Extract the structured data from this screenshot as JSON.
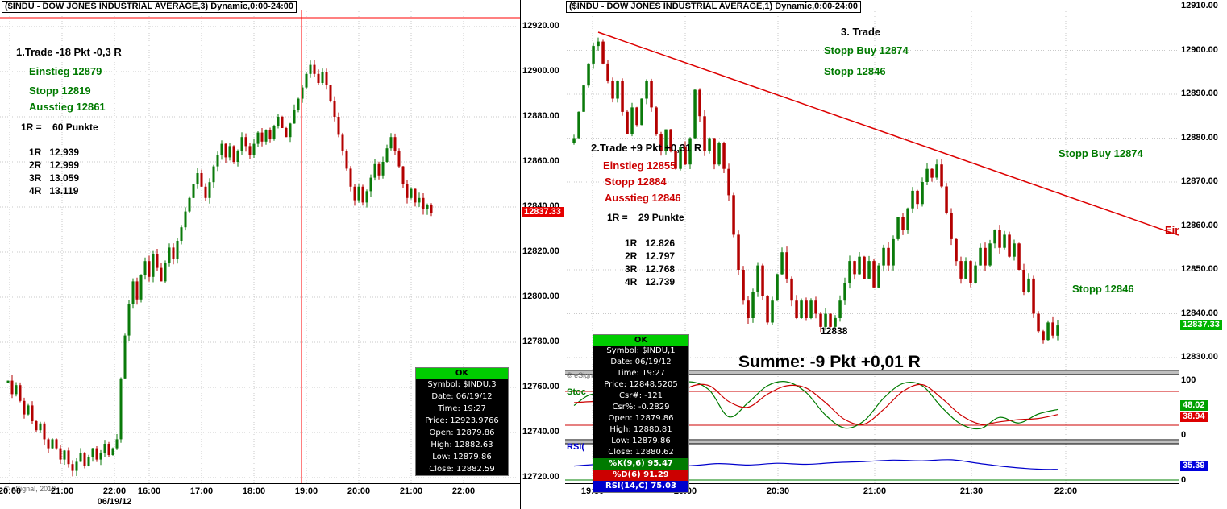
{
  "left_panel": {
    "title": "($INDU - DOW JONES INDUSTRIAL AVERAGE,3) Dynamic,0:00-24:00",
    "annotations": {
      "trade_title": "1.Trade -18 Pkt -0,3 R",
      "einstieg": "Einstieg 12879",
      "stopp": "Stopp 12819",
      "ausstieg": "Ausstieg 12861",
      "r_def": "1R =    60 Punkte",
      "r_rows": [
        "1R   12.939",
        "2R   12.999",
        "3R   13.059",
        "4R   13.119"
      ]
    },
    "tooltip": {
      "ok": "OK",
      "rows": [
        "Symbol: $INDU,3",
        "Date: 06/19/12",
        "Time: 19:27",
        "Price: 12923.9766",
        "Open: 12879.86",
        "High: 12882.63",
        "Low: 12879.86",
        "Close: 12882.59"
      ]
    },
    "x_labels": [
      "20:00",
      "21:00",
      "22:00",
      "16:00",
      "17:00",
      "18:00",
      "19:00",
      "20:00",
      "21:00",
      "22:00"
    ],
    "date_label": "06/19/12",
    "copyright": "© eSignal, 2010",
    "last_price_tag": "12837.33"
  },
  "right_panel": {
    "title": "($INDU - DOW JONES INDUSTRIAL AVERAGE,1) Dynamic,0:00-24:00",
    "annotations": {
      "trade3_title": "3. Trade",
      "trade3_stopp_buy": "Stopp Buy 12874",
      "trade3_stopp": "Stopp 12846",
      "trade2_title": "2.Trade +9 Pkt +0,31 R",
      "einstieg": "Einstieg 12855",
      "stopp": "Stopp 12884",
      "ausstieg": "Ausstieg 12846",
      "r_def": "1R =    29 Punkte",
      "r_rows": [
        "1R   12.826",
        "2R   12.797",
        "3R   12.768",
        "4R   12.739"
      ],
      "stopp_buy_right": "Stopp Buy 12874",
      "ein_clipped": "Ein",
      "stopp_right": "Stopp 12846",
      "low_label": "12838",
      "summe": "Summe: -9 Pkt +0,01 R",
      "stoch_label": "Stoc",
      "rsi_label": "RSI(",
      "copyright": "© eSign"
    },
    "tooltip": {
      "ok": "OK",
      "rows": [
        "Symbol: $INDU,1",
        "Date: 06/19/12",
        "Time: 19:27",
        "Price: 12848.5205",
        "Csr#: -121",
        "Csr%: -0.2829",
        "Open: 12879.86",
        "High: 12880.81",
        "Low: 12879.86",
        "Close: 12880.62"
      ],
      "study_rows": [
        {
          "text": "%K(9,6) 95.47",
          "bg": "#007a00"
        },
        {
          "text": "%D(6) 91.29",
          "bg": "#cc0000"
        },
        {
          "text": "RSI(14,C) 75.03",
          "bg": "#0000cc"
        }
      ]
    },
    "x_labels": [
      "19:30",
      "20:00",
      "20:30",
      "21:00",
      "21:30",
      "22:00"
    ],
    "last_price_tag": "12837.33",
    "pane_labels": {
      "stoch_top": "100",
      "stoch_bottom": "0",
      "rsi_bottom": "0"
    },
    "value_tags": {
      "stoch_k": {
        "text": "48.02",
        "bg": "#00a000"
      },
      "stoch_d": {
        "text": "38.94",
        "bg": "#dd0000"
      },
      "rsi": {
        "text": "35.39",
        "bg": "#0000dd"
      }
    }
  },
  "colors": {
    "up": "#0a7a0a",
    "down": "#b30000",
    "grid": "#c9c9c9",
    "crosshair": "#ff0000",
    "trendline": "#dd0000",
    "last_tag_left_bg": "#e60000",
    "last_tag_right_bg": "#00b400",
    "stoch_ref": "#cc0000",
    "rsi_ref": "#008000"
  },
  "chart_data": [
    {
      "type": "candlestick",
      "symbol": "$INDU",
      "name": "DOW JONES INDUSTRIAL AVERAGE",
      "interval_min": 3,
      "y_ticks": [
        12920,
        12900,
        12880,
        12860,
        12840,
        12820,
        12800,
        12780,
        12760,
        12740,
        12720
      ],
      "x_tick_labels": [
        "20:00",
        "21:00",
        "22:00",
        "16:00",
        "17:00",
        "18:00",
        "19:00",
        "20:00",
        "21:00",
        "22:00"
      ],
      "last_price": 12837.33,
      "closes": [
        12763,
        12757,
        12761,
        12754,
        12748,
        12752,
        12745,
        12741,
        12744,
        12737,
        12733,
        12737,
        12733,
        12728,
        12732,
        12726,
        12723,
        12727,
        12731,
        12725,
        12729,
        12733,
        12728,
        12731,
        12735,
        12730,
        12733,
        12737,
        12764,
        12783,
        12797,
        12807,
        12799,
        12810,
        12816,
        12809,
        12819,
        12813,
        12807,
        12815,
        12822,
        12817,
        12825,
        12831,
        12838,
        12844,
        12850,
        12855,
        12849,
        12844,
        12851,
        12858,
        12863,
        12868,
        12862,
        12867,
        12860,
        12865,
        12871,
        12867,
        12863,
        12868,
        12873,
        12869,
        12874,
        12870,
        12876,
        12880,
        12875,
        12871,
        12877,
        12883,
        12888,
        12893,
        12899,
        12903,
        12899,
        12895,
        12900,
        12894,
        12887,
        12880,
        12872,
        12865,
        12857,
        12849,
        12843,
        12849,
        12842,
        12847,
        12853,
        12859,
        12854,
        12860,
        12866,
        12871,
        12865,
        12858,
        12850,
        12844,
        12848,
        12842,
        12844,
        12839,
        12841,
        12837.33
      ]
    },
    {
      "type": "candlestick",
      "symbol": "$INDU",
      "name": "DOW JONES INDUSTRIAL AVERAGE",
      "interval_min": 1,
      "y_ticks": [
        12910,
        12900,
        12890,
        12880,
        12870,
        12860,
        12850,
        12840,
        12830
      ],
      "x_tick_labels": [
        "19:30",
        "20:00",
        "20:30",
        "21:00",
        "21:30",
        "22:00"
      ],
      "last_price": 12837.33,
      "closes": [
        12880,
        12886,
        12892,
        12897,
        12901,
        12902,
        12897,
        12893,
        12889,
        12893,
        12886,
        12881,
        12887,
        12883,
        12889,
        12893,
        12887,
        12881,
        12877,
        12882,
        12877,
        12873,
        12878,
        12874,
        12880,
        12891,
        12885,
        12877,
        12880,
        12874,
        12879,
        12873,
        12867,
        12858,
        12850,
        12843,
        12839,
        12845,
        12851,
        12844,
        12838,
        12843,
        12849,
        12854,
        12848,
        12843,
        12839,
        12843,
        12839,
        12843,
        12840,
        12837,
        12840,
        12837,
        12839,
        12843,
        12847,
        12852,
        12849,
        12853,
        12848,
        12852,
        12846,
        12851,
        12855,
        12851,
        12857,
        12862,
        12859,
        12864,
        12868,
        12865,
        12870,
        12873,
        12871,
        12874,
        12869,
        12863,
        12857,
        12852,
        12848,
        12852,
        12847,
        12851,
        12855,
        12851,
        12856,
        12859,
        12855,
        12858,
        12853,
        12856,
        12850,
        12845,
        12848,
        12840,
        12836,
        12834,
        12838,
        12835,
        12837.33
      ]
    },
    {
      "type": "line",
      "name": "Stochastic",
      "ylim": [
        0,
        100
      ],
      "ref_lines": [
        80,
        20
      ],
      "series": [
        {
          "name": "%K",
          "color": "#007a00",
          "last": 48.02,
          "points": [
            [
              0,
              55
            ],
            [
              0.04,
              75
            ],
            [
              0.08,
              50
            ],
            [
              0.12,
              22
            ],
            [
              0.16,
              40
            ],
            [
              0.2,
              85
            ],
            [
              0.24,
              97
            ],
            [
              0.28,
              82
            ],
            [
              0.32,
              35
            ],
            [
              0.36,
              60
            ],
            [
              0.4,
              90
            ],
            [
              0.44,
              97
            ],
            [
              0.48,
              78
            ],
            [
              0.52,
              38
            ],
            [
              0.56,
              15
            ],
            [
              0.6,
              28
            ],
            [
              0.64,
              68
            ],
            [
              0.68,
              94
            ],
            [
              0.72,
              90
            ],
            [
              0.76,
              52
            ],
            [
              0.8,
              22
            ],
            [
              0.84,
              14
            ],
            [
              0.88,
              34
            ],
            [
              0.92,
              24
            ],
            [
              0.96,
              40
            ],
            [
              1,
              48.02
            ]
          ]
        },
        {
          "name": "%D",
          "color": "#cc0000",
          "last": 38.94,
          "points": [
            [
              0,
              60
            ],
            [
              0.04,
              62
            ],
            [
              0.08,
              60
            ],
            [
              0.12,
              38
            ],
            [
              0.16,
              35
            ],
            [
              0.2,
              62
            ],
            [
              0.24,
              88
            ],
            [
              0.28,
              90
            ],
            [
              0.32,
              62
            ],
            [
              0.36,
              52
            ],
            [
              0.4,
              75
            ],
            [
              0.44,
              90
            ],
            [
              0.48,
              86
            ],
            [
              0.52,
              60
            ],
            [
              0.56,
              30
            ],
            [
              0.6,
              22
            ],
            [
              0.64,
              48
            ],
            [
              0.68,
              80
            ],
            [
              0.72,
              92
            ],
            [
              0.76,
              68
            ],
            [
              0.8,
              38
            ],
            [
              0.84,
              22
            ],
            [
              0.88,
              26
            ],
            [
              0.92,
              30
            ],
            [
              0.96,
              32
            ],
            [
              1,
              38.94
            ]
          ]
        }
      ]
    },
    {
      "type": "line",
      "name": "RSI",
      "ylim": [
        0,
        100
      ],
      "series": [
        {
          "name": "RSI",
          "color": "#0000cc",
          "last": 35.39,
          "points": [
            [
              0,
              45
            ],
            [
              0.06,
              50
            ],
            [
              0.12,
              44
            ],
            [
              0.18,
              49
            ],
            [
              0.24,
              46
            ],
            [
              0.3,
              52
            ],
            [
              0.36,
              48
            ],
            [
              0.42,
              53
            ],
            [
              0.48,
              50
            ],
            [
              0.54,
              55
            ],
            [
              0.6,
              58
            ],
            [
              0.66,
              62
            ],
            [
              0.72,
              60
            ],
            [
              0.78,
              63
            ],
            [
              0.84,
              52
            ],
            [
              0.9,
              42
            ],
            [
              0.96,
              36
            ],
            [
              1,
              35.39
            ]
          ]
        }
      ]
    }
  ]
}
